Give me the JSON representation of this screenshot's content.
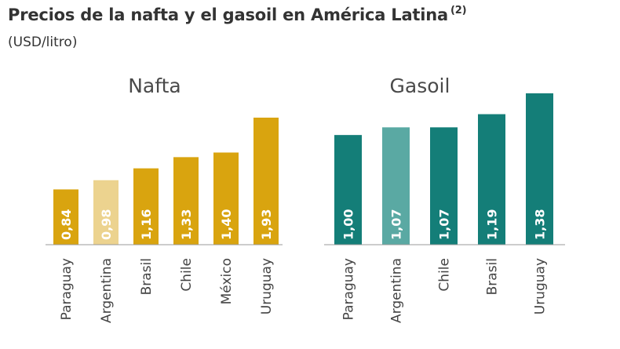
{
  "header": {
    "title": "Precios de la nafta y el gasoil en América Latina",
    "title_note": "(2)",
    "subtitle": "(USD/litro)"
  },
  "chart_data": [
    {
      "type": "bar",
      "title": "Nafta",
      "unit": "USD/litro",
      "categories": [
        "Paraguay",
        "Argentina",
        "Brasil",
        "Chile",
        "México",
        "Uruguay"
      ],
      "values": [
        0.84,
        0.98,
        1.16,
        1.33,
        1.4,
        1.93
      ],
      "value_labels": [
        "0,84",
        "0,98",
        "1,16",
        "1,33",
        "1,40",
        "1,93"
      ],
      "colors": [
        "#d9a40f",
        "#ecd38f",
        "#d9a40f",
        "#d9a40f",
        "#d9a40f",
        "#d9a40f"
      ],
      "highlight_category": "Argentina",
      "ylim": [
        0,
        2.2
      ],
      "grid": false
    },
    {
      "type": "bar",
      "title": "Gasoil",
      "unit": "USD/litro",
      "categories": [
        "Paraguay",
        "Argentina",
        "Chile",
        "Brasil",
        "Uruguay"
      ],
      "values": [
        1.0,
        1.07,
        1.07,
        1.19,
        1.38
      ],
      "value_labels": [
        "1,00",
        "1,07",
        "1,07",
        "1,19",
        "1,38"
      ],
      "colors": [
        "#147e78",
        "#5aa9a3",
        "#147e78",
        "#147e78",
        "#147e78"
      ],
      "highlight_category": "Argentina",
      "ylim": [
        0,
        1.6
      ],
      "grid": false
    }
  ]
}
